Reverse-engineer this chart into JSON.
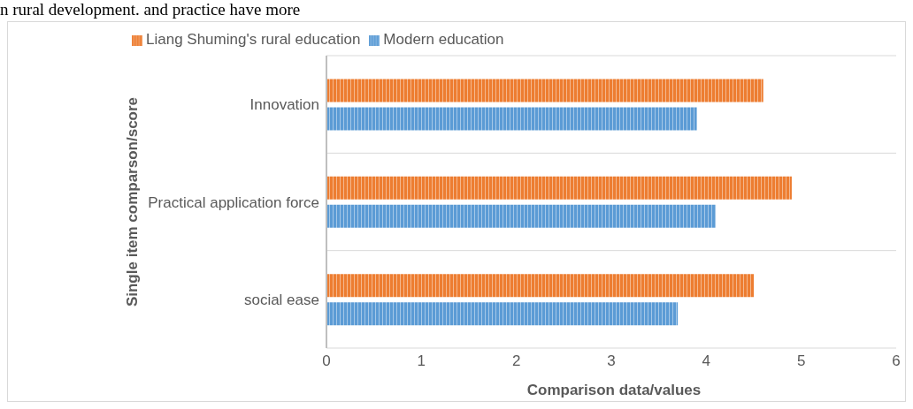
{
  "chart_data": {
    "type": "bar",
    "orientation": "horizontal",
    "xlabel": "Comparison data/values",
    "ylabel": "Single item comparson/score",
    "annotations": [
      "n rural development. and practice have more"
    ],
    "categories": [
      "Innovation",
      "Practical application force",
      "social ease"
    ],
    "series": [
      {
        "name": "Liang Shuming's rural education",
        "color": "#ed7d31",
        "values": [
          4.6,
          4.9,
          4.5
        ]
      },
      {
        "name": "Modern education",
        "color": "#5b9bd5",
        "values": [
          3.9,
          4.1,
          3.7
        ]
      }
    ],
    "xlim": [
      0,
      6
    ],
    "xticks": [
      0,
      1,
      2,
      3,
      4,
      5,
      6
    ],
    "grid": "y",
    "legend": "top left"
  }
}
